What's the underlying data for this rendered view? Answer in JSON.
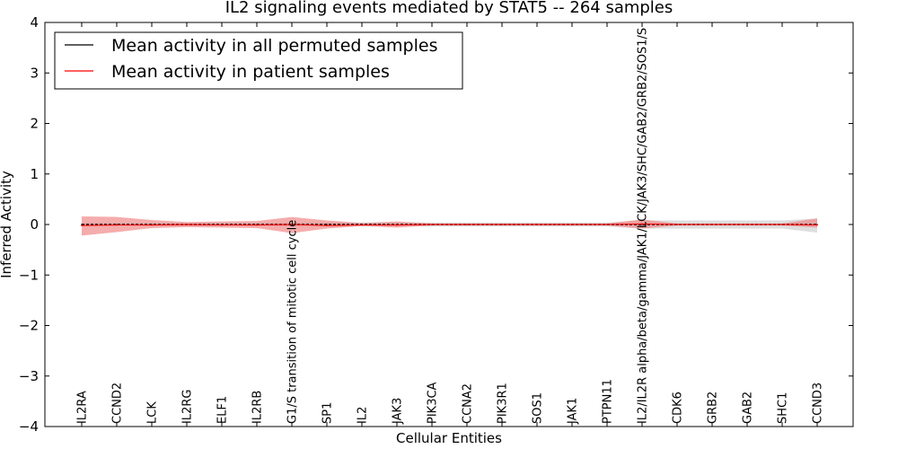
{
  "chart_data": {
    "type": "line",
    "title": "IL2 signaling events mediated by STAT5 -- 264 samples",
    "xlabel": "Cellular Entities",
    "ylabel": "Inferred Activity",
    "ylim": [
      -4,
      4
    ],
    "yticks": [
      "−4",
      "−3",
      "−2",
      "−1",
      "0",
      "1",
      "2",
      "3",
      "4"
    ],
    "ytick_values": [
      -4,
      -3,
      -2,
      -1,
      0,
      1,
      2,
      3,
      4
    ],
    "legend_position": "top-left",
    "categories": [
      "IL2RA",
      "CCND2",
      "LCK",
      "IL2RG",
      "ELF1",
      "IL2RB",
      "G1/S transition of mitotic cell cycle",
      "SP1",
      "IL2",
      "JAK3",
      "PIK3CA",
      "CCNA2",
      "PIK3R1",
      "SOS1",
      "JAK1",
      "PTPN11",
      "IL2/IL2R alpha/beta/gamma/JAK1/LCK/JAK3/SHC/GAB2/GRB2/SOS1/S",
      "CDK6",
      "GRB2",
      "GAB2",
      "SHC1",
      "CCND3"
    ],
    "series": [
      {
        "name": "Mean activity in all permuted samples",
        "color": "#000000",
        "values": [
          0,
          0,
          0,
          0,
          0,
          0,
          0,
          0,
          0,
          0,
          0,
          0,
          0,
          0,
          0,
          0,
          0,
          0,
          0,
          0,
          0,
          0
        ],
        "band_lower": [
          -0.03,
          -0.03,
          -0.03,
          -0.03,
          -0.03,
          -0.03,
          -0.04,
          -0.04,
          -0.04,
          -0.04,
          -0.04,
          -0.04,
          -0.04,
          -0.04,
          -0.04,
          -0.04,
          -0.08,
          -0.08,
          -0.08,
          -0.08,
          -0.08,
          -0.16
        ],
        "band_upper": [
          0.03,
          0.03,
          0.03,
          0.03,
          0.03,
          0.03,
          0.04,
          0.04,
          0.04,
          0.04,
          0.04,
          0.04,
          0.04,
          0.04,
          0.04,
          0.04,
          0.08,
          0.08,
          0.08,
          0.08,
          0.08,
          0.12
        ]
      },
      {
        "name": "Mean activity in patient samples",
        "color": "#ff0000",
        "values": [
          -0.02,
          -0.01,
          -0.01,
          0,
          -0.01,
          -0.01,
          0,
          -0.02,
          -0.01,
          -0.01,
          0,
          0,
          0,
          0,
          0,
          0,
          0.01,
          0,
          0,
          0,
          0,
          -0.01
        ],
        "band_lower": [
          -0.22,
          -0.15,
          -0.07,
          -0.05,
          -0.06,
          -0.07,
          -0.17,
          -0.08,
          -0.03,
          -0.06,
          -0.02,
          -0.02,
          -0.02,
          -0.02,
          -0.02,
          -0.02,
          -0.08,
          -0.02,
          -0.02,
          -0.02,
          -0.02,
          -0.06
        ],
        "band_upper": [
          0.16,
          0.15,
          0.09,
          0.05,
          0.06,
          0.07,
          0.15,
          0.08,
          0.03,
          0.06,
          0.02,
          0.02,
          0.02,
          0.02,
          0.02,
          0.02,
          0.1,
          0.02,
          0.02,
          0.02,
          0.02,
          0.12
        ]
      }
    ]
  },
  "colors": {
    "patient_band": "#f08080",
    "permuted_band": "#c8c8c8"
  }
}
